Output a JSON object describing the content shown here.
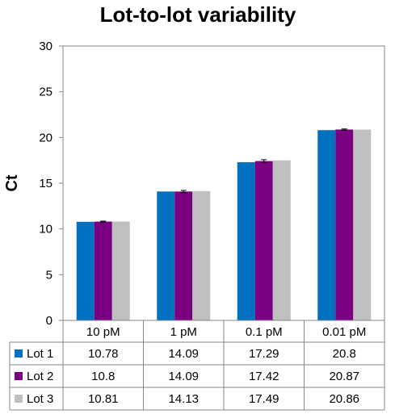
{
  "chart_data": {
    "type": "bar",
    "title": "Lot-to-lot variability",
    "xlabel": "",
    "ylabel": "Ct",
    "ylim": [
      0,
      30
    ],
    "yticks": [
      0,
      5,
      10,
      15,
      20,
      25,
      30
    ],
    "grid": false,
    "legend": "data-table",
    "categories": [
      "10 pM",
      "1 pM",
      "0.1 pM",
      "0.01 pM"
    ],
    "series": [
      {
        "name": "Lot 1",
        "color": "#0070C0",
        "values": [
          10.78,
          14.09,
          17.29,
          20.8
        ]
      },
      {
        "name": "Lot 2",
        "color": "#7A0081",
        "values": [
          10.8,
          14.09,
          17.42,
          20.87
        ]
      },
      {
        "name": "Lot 3",
        "color": "#BFBFBF",
        "values": [
          10.81,
          14.13,
          17.49,
          20.86
        ]
      }
    ],
    "table_cells": [
      [
        "10.78",
        "14.09",
        "17.29",
        "20.8"
      ],
      [
        "10.8",
        "14.09",
        "17.42",
        "20.87"
      ],
      [
        "10.81",
        "14.13",
        "17.49",
        "20.86"
      ]
    ],
    "error_bars_series_index": 1,
    "error_bars": [
      0.05,
      0.12,
      0.15,
      0.06
    ]
  }
}
